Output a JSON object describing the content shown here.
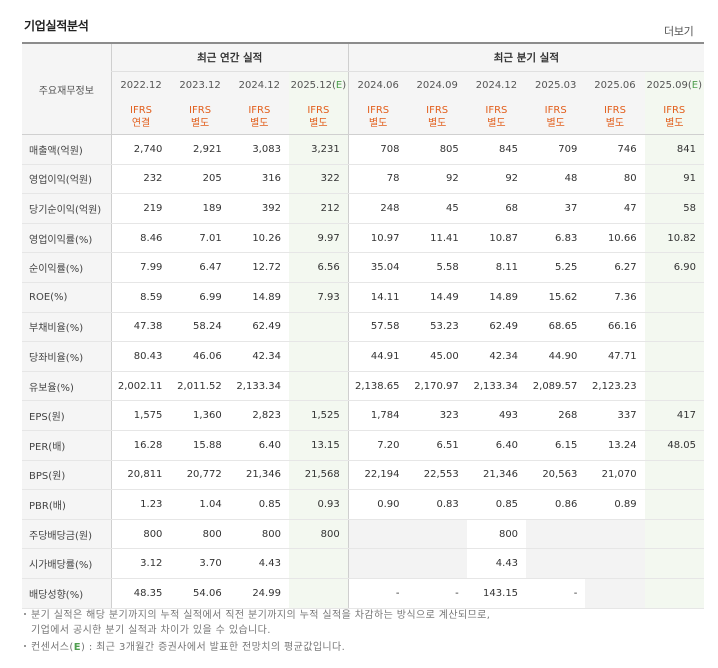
{
  "title": "기업실적분석",
  "more_label": "더보기",
  "row_header_label": "주요재무정보",
  "groups": {
    "annual": "최근 연간 실적",
    "quarter": "최근 분기 실적"
  },
  "periods": [
    "2022.12",
    "2023.12",
    "2024.12",
    "2025.12(E)",
    "2024.06",
    "2024.09",
    "2024.12",
    "2025.03",
    "2025.06",
    "2025.09(E)"
  ],
  "ifrs": [
    [
      "IFRS",
      "연결"
    ],
    [
      "IFRS",
      "별도"
    ],
    [
      "IFRS",
      "별도"
    ],
    [
      "IFRS",
      "별도"
    ],
    [
      "IFRS",
      "별도"
    ],
    [
      "IFRS",
      "별도"
    ],
    [
      "IFRS",
      "별도"
    ],
    [
      "IFRS",
      "별도"
    ],
    [
      "IFRS",
      "별도"
    ],
    [
      "IFRS",
      "별도"
    ]
  ],
  "rows": [
    {
      "label": "매출액(억원)",
      "values": [
        "2,740",
        "2,921",
        "3,083",
        "3,231",
        "708",
        "805",
        "845",
        "709",
        "746",
        "841"
      ]
    },
    {
      "label": "영업이익(억원)",
      "values": [
        "232",
        "205",
        "316",
        "322",
        "78",
        "92",
        "92",
        "48",
        "80",
        "91"
      ]
    },
    {
      "label": "당기순이익(억원)",
      "values": [
        "219",
        "189",
        "392",
        "212",
        "248",
        "45",
        "68",
        "37",
        "47",
        "58"
      ]
    },
    {
      "label": "영업이익률(%)",
      "values": [
        "8.46",
        "7.01",
        "10.26",
        "9.97",
        "10.97",
        "11.41",
        "10.87",
        "6.83",
        "10.66",
        "10.82"
      ]
    },
    {
      "label": "순이익률(%)",
      "values": [
        "7.99",
        "6.47",
        "12.72",
        "6.56",
        "35.04",
        "5.58",
        "8.11",
        "5.25",
        "6.27",
        "6.90"
      ]
    },
    {
      "label": "ROE(%)",
      "values": [
        "8.59",
        "6.99",
        "14.89",
        "7.93",
        "14.11",
        "14.49",
        "14.89",
        "15.62",
        "7.36",
        ""
      ]
    },
    {
      "label": "부채비율(%)",
      "values": [
        "47.38",
        "58.24",
        "62.49",
        "",
        "57.58",
        "53.23",
        "62.49",
        "68.65",
        "66.16",
        ""
      ]
    },
    {
      "label": "당좌비율(%)",
      "values": [
        "80.43",
        "46.06",
        "42.34",
        "",
        "44.91",
        "45.00",
        "42.34",
        "44.90",
        "47.71",
        ""
      ]
    },
    {
      "label": "유보율(%)",
      "values": [
        "2,002.11",
        "2,011.52",
        "2,133.34",
        "",
        "2,138.65",
        "2,170.97",
        "2,133.34",
        "2,089.57",
        "2,123.23",
        ""
      ]
    },
    {
      "label": "EPS(원)",
      "values": [
        "1,575",
        "1,360",
        "2,823",
        "1,525",
        "1,784",
        "323",
        "493",
        "268",
        "337",
        "417"
      ]
    },
    {
      "label": "PER(배)",
      "values": [
        "16.28",
        "15.88",
        "6.40",
        "13.15",
        "7.20",
        "6.51",
        "6.40",
        "6.15",
        "13.24",
        "48.05"
      ]
    },
    {
      "label": "BPS(원)",
      "values": [
        "20,811",
        "20,772",
        "21,346",
        "21,568",
        "22,194",
        "22,553",
        "21,346",
        "20,563",
        "21,070",
        ""
      ]
    },
    {
      "label": "PBR(배)",
      "values": [
        "1.23",
        "1.04",
        "0.85",
        "0.93",
        "0.90",
        "0.83",
        "0.85",
        "0.86",
        "0.89",
        ""
      ]
    },
    {
      "label": "주당배당금(원)",
      "values": [
        "800",
        "800",
        "800",
        "800",
        "",
        "",
        "800",
        "",
        "",
        ""
      ]
    },
    {
      "label": "시가배당률(%)",
      "values": [
        "3.12",
        "3.70",
        "4.43",
        "",
        "",
        "",
        "4.43",
        "",
        "",
        ""
      ]
    },
    {
      "label": "배당성향(%)",
      "values": [
        "48.35",
        "54.06",
        "24.99",
        "",
        "-",
        "-",
        "143.15",
        "-",
        "",
        ""
      ]
    }
  ],
  "notes": {
    "line1": "분기 실적은 해당 분기까지의 누적 실적에서 직전 분기까지의 누적 실적을 차감하는 방식으로 계산되므로,",
    "line2": "기업에서 공시한 분기 실적과 차이가 있을 수 있습니다.",
    "line3_prefix": "컨센서스(",
    "line3_mark": "E",
    "line3_suffix": ") : 최근 3개월간 증권사에서 발표한 전망치의 평균값입니다."
  }
}
